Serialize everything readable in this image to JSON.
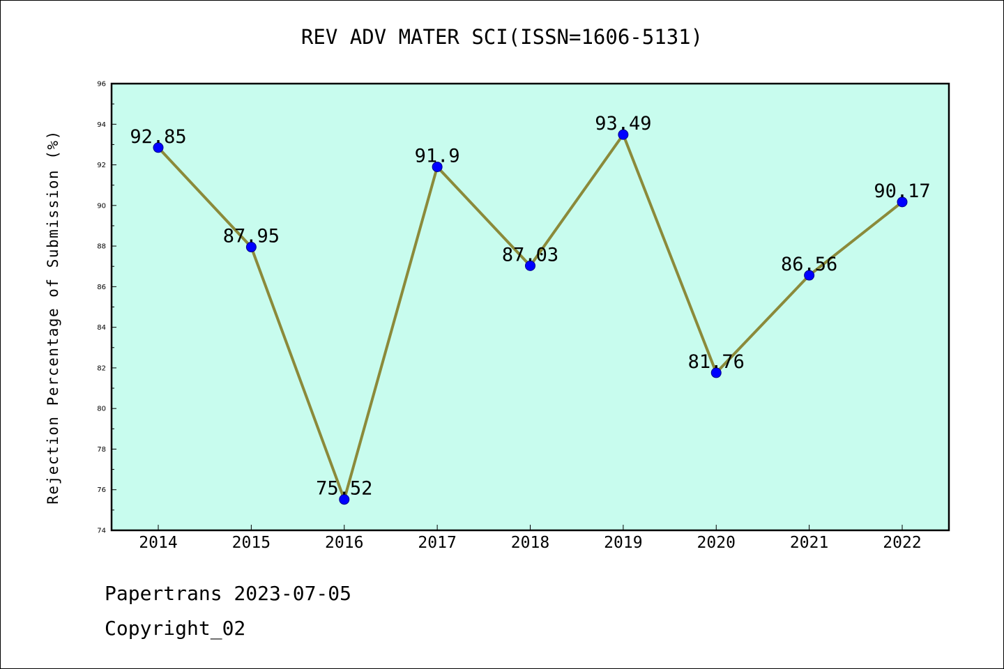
{
  "chart_data": {
    "type": "line",
    "title": "REV ADV MATER SCI(ISSN=1606-5131)",
    "ylabel": "Rejection Percentage of Submission (%)",
    "xlabel": "",
    "categories": [
      "2014",
      "2015",
      "2016",
      "2017",
      "2018",
      "2019",
      "2020",
      "2021",
      "2022"
    ],
    "values": [
      92.85,
      87.95,
      75.52,
      91.9,
      87.03,
      93.49,
      81.76,
      86.56,
      90.17
    ],
    "data_labels": [
      "92.85",
      "87.95",
      "75.52",
      "91.9",
      "87.03",
      "93.49",
      "81.76",
      "86.56",
      "90.17"
    ],
    "ylim": [
      74,
      96
    ],
    "yticks": [
      74,
      76,
      78,
      80,
      82,
      84,
      86,
      88,
      90,
      92,
      94,
      96
    ],
    "grid": false,
    "legend": "none",
    "colors": {
      "plot_background": "#c8fcee",
      "line": "#8b8a3a",
      "marker": "#0000ff"
    }
  },
  "footer": {
    "line1": "Papertrans 2023-07-05",
    "line2": "Copyright_02"
  }
}
